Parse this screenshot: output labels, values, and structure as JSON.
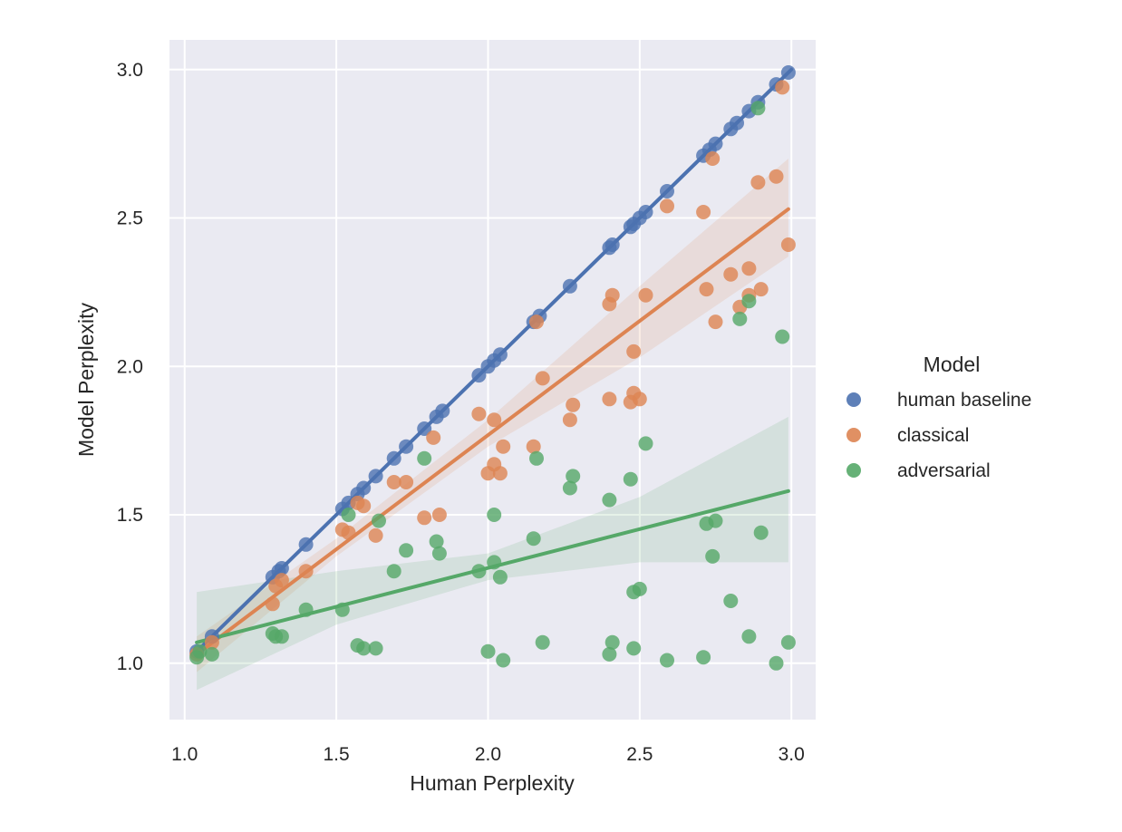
{
  "chart_data": {
    "type": "scatter",
    "title": "",
    "xlabel": "Human Perplexity",
    "ylabel": "Model Perplexity",
    "xlim": [
      0.95,
      3.08
    ],
    "ylim": [
      0.81,
      3.1
    ],
    "xticks": [
      "1.0",
      "1.5",
      "2.0",
      "2.5",
      "3.0"
    ],
    "yticks": [
      "1.0",
      "1.5",
      "2.0",
      "2.5",
      "3.0"
    ],
    "grid": true,
    "legend": {
      "title": "Model",
      "placement": "right"
    },
    "colors": {
      "background": "#eaeaf2",
      "grid": "#ffffff"
    },
    "series": [
      {
        "name": "human baseline",
        "color": "#4c72b0",
        "regression": {
          "x0": 1.04,
          "y0": 1.04,
          "x1": 3.0,
          "y1": 3.0,
          "band": [
            [
              1.04,
              1.035,
              1.045
            ],
            [
              3.0,
              2.99,
              3.01
            ]
          ]
        },
        "points": [
          [
            1.04,
            1.04
          ],
          [
            1.09,
            1.09
          ],
          [
            1.29,
            1.29
          ],
          [
            1.31,
            1.31
          ],
          [
            1.32,
            1.32
          ],
          [
            1.4,
            1.4
          ],
          [
            1.52,
            1.52
          ],
          [
            1.54,
            1.54
          ],
          [
            1.57,
            1.57
          ],
          [
            1.59,
            1.59
          ],
          [
            1.63,
            1.63
          ],
          [
            1.69,
            1.69
          ],
          [
            1.73,
            1.73
          ],
          [
            1.79,
            1.79
          ],
          [
            1.83,
            1.83
          ],
          [
            1.85,
            1.85
          ],
          [
            1.97,
            1.97
          ],
          [
            2.0,
            2.0
          ],
          [
            2.02,
            2.02
          ],
          [
            2.04,
            2.04
          ],
          [
            2.15,
            2.15
          ],
          [
            2.17,
            2.17
          ],
          [
            2.27,
            2.27
          ],
          [
            2.4,
            2.4
          ],
          [
            2.41,
            2.41
          ],
          [
            2.47,
            2.47
          ],
          [
            2.48,
            2.48
          ],
          [
            2.5,
            2.5
          ],
          [
            2.52,
            2.52
          ],
          [
            2.59,
            2.59
          ],
          [
            2.71,
            2.71
          ],
          [
            2.73,
            2.73
          ],
          [
            2.75,
            2.75
          ],
          [
            2.8,
            2.8
          ],
          [
            2.82,
            2.82
          ],
          [
            2.86,
            2.86
          ],
          [
            2.89,
            2.89
          ],
          [
            2.95,
            2.95
          ],
          [
            2.99,
            2.99
          ]
        ]
      },
      {
        "name": "classical",
        "color": "#dd8452",
        "regression": {
          "x0": 1.04,
          "y0": 1.03,
          "x1": 2.99,
          "y1": 2.53,
          "band": [
            [
              1.04,
              0.97,
              1.09
            ],
            [
              1.5,
              1.36,
              1.42
            ],
            [
              2.0,
              1.73,
              1.82
            ],
            [
              2.5,
              2.03,
              2.27
            ],
            [
              2.99,
              2.37,
              2.7
            ]
          ]
        },
        "points": [
          [
            1.04,
            1.03
          ],
          [
            1.09,
            1.07
          ],
          [
            1.29,
            1.2
          ],
          [
            1.3,
            1.26
          ],
          [
            1.32,
            1.28
          ],
          [
            1.4,
            1.31
          ],
          [
            1.52,
            1.45
          ],
          [
            1.54,
            1.44
          ],
          [
            1.57,
            1.54
          ],
          [
            1.59,
            1.53
          ],
          [
            1.63,
            1.43
          ],
          [
            1.69,
            1.61
          ],
          [
            1.73,
            1.61
          ],
          [
            1.79,
            1.49
          ],
          [
            1.82,
            1.76
          ],
          [
            1.84,
            1.5
          ],
          [
            1.97,
            1.84
          ],
          [
            2.0,
            1.64
          ],
          [
            2.02,
            1.82
          ],
          [
            2.02,
            1.67
          ],
          [
            2.04,
            1.64
          ],
          [
            2.05,
            1.73
          ],
          [
            2.15,
            1.73
          ],
          [
            2.16,
            2.15
          ],
          [
            2.18,
            1.96
          ],
          [
            2.27,
            1.82
          ],
          [
            2.28,
            1.87
          ],
          [
            2.4,
            1.89
          ],
          [
            2.4,
            2.21
          ],
          [
            2.41,
            2.24
          ],
          [
            2.47,
            1.88
          ],
          [
            2.48,
            1.91
          ],
          [
            2.48,
            2.05
          ],
          [
            2.5,
            1.89
          ],
          [
            2.52,
            2.24
          ],
          [
            2.59,
            2.54
          ],
          [
            2.71,
            2.52
          ],
          [
            2.72,
            2.26
          ],
          [
            2.74,
            2.7
          ],
          [
            2.75,
            2.15
          ],
          [
            2.8,
            2.31
          ],
          [
            2.83,
            2.2
          ],
          [
            2.86,
            2.24
          ],
          [
            2.86,
            2.33
          ],
          [
            2.89,
            2.62
          ],
          [
            2.9,
            2.26
          ],
          [
            2.95,
            2.64
          ],
          [
            2.97,
            2.94
          ],
          [
            2.99,
            2.41
          ]
        ]
      },
      {
        "name": "adversarial",
        "color": "#55a868",
        "regression": {
          "x0": 1.04,
          "y0": 1.07,
          "x1": 2.99,
          "y1": 1.58,
          "band": [
            [
              1.04,
              0.91,
              1.24
            ],
            [
              1.5,
              1.13,
              1.31
            ],
            [
              2.0,
              1.28,
              1.37
            ],
            [
              2.5,
              1.34,
              1.56
            ],
            [
              2.99,
              1.34,
              1.83
            ]
          ]
        },
        "points": [
          [
            1.04,
            1.02
          ],
          [
            1.05,
            1.04
          ],
          [
            1.09,
            1.03
          ],
          [
            1.29,
            1.1
          ],
          [
            1.3,
            1.09
          ],
          [
            1.32,
            1.09
          ],
          [
            1.4,
            1.18
          ],
          [
            1.52,
            1.18
          ],
          [
            1.54,
            1.5
          ],
          [
            1.57,
            1.06
          ],
          [
            1.59,
            1.05
          ],
          [
            1.63,
            1.05
          ],
          [
            1.64,
            1.48
          ],
          [
            1.69,
            1.31
          ],
          [
            1.73,
            1.38
          ],
          [
            1.79,
            1.69
          ],
          [
            1.83,
            1.41
          ],
          [
            1.84,
            1.37
          ],
          [
            1.97,
            1.31
          ],
          [
            2.0,
            1.04
          ],
          [
            2.02,
            1.5
          ],
          [
            2.02,
            1.34
          ],
          [
            2.04,
            1.29
          ],
          [
            2.05,
            1.01
          ],
          [
            2.15,
            1.42
          ],
          [
            2.16,
            1.69
          ],
          [
            2.18,
            1.07
          ],
          [
            2.27,
            1.59
          ],
          [
            2.28,
            1.63
          ],
          [
            2.4,
            1.03
          ],
          [
            2.4,
            1.55
          ],
          [
            2.41,
            1.07
          ],
          [
            2.47,
            1.62
          ],
          [
            2.48,
            1.24
          ],
          [
            2.48,
            1.05
          ],
          [
            2.5,
            1.25
          ],
          [
            2.52,
            1.74
          ],
          [
            2.59,
            1.01
          ],
          [
            2.71,
            1.02
          ],
          [
            2.72,
            1.47
          ],
          [
            2.74,
            1.36
          ],
          [
            2.75,
            1.48
          ],
          [
            2.8,
            1.21
          ],
          [
            2.83,
            2.16
          ],
          [
            2.86,
            2.22
          ],
          [
            2.86,
            1.09
          ],
          [
            2.89,
            2.87
          ],
          [
            2.9,
            1.44
          ],
          [
            2.95,
            1.0
          ],
          [
            2.97,
            2.1
          ],
          [
            2.99,
            1.07
          ]
        ]
      }
    ]
  }
}
